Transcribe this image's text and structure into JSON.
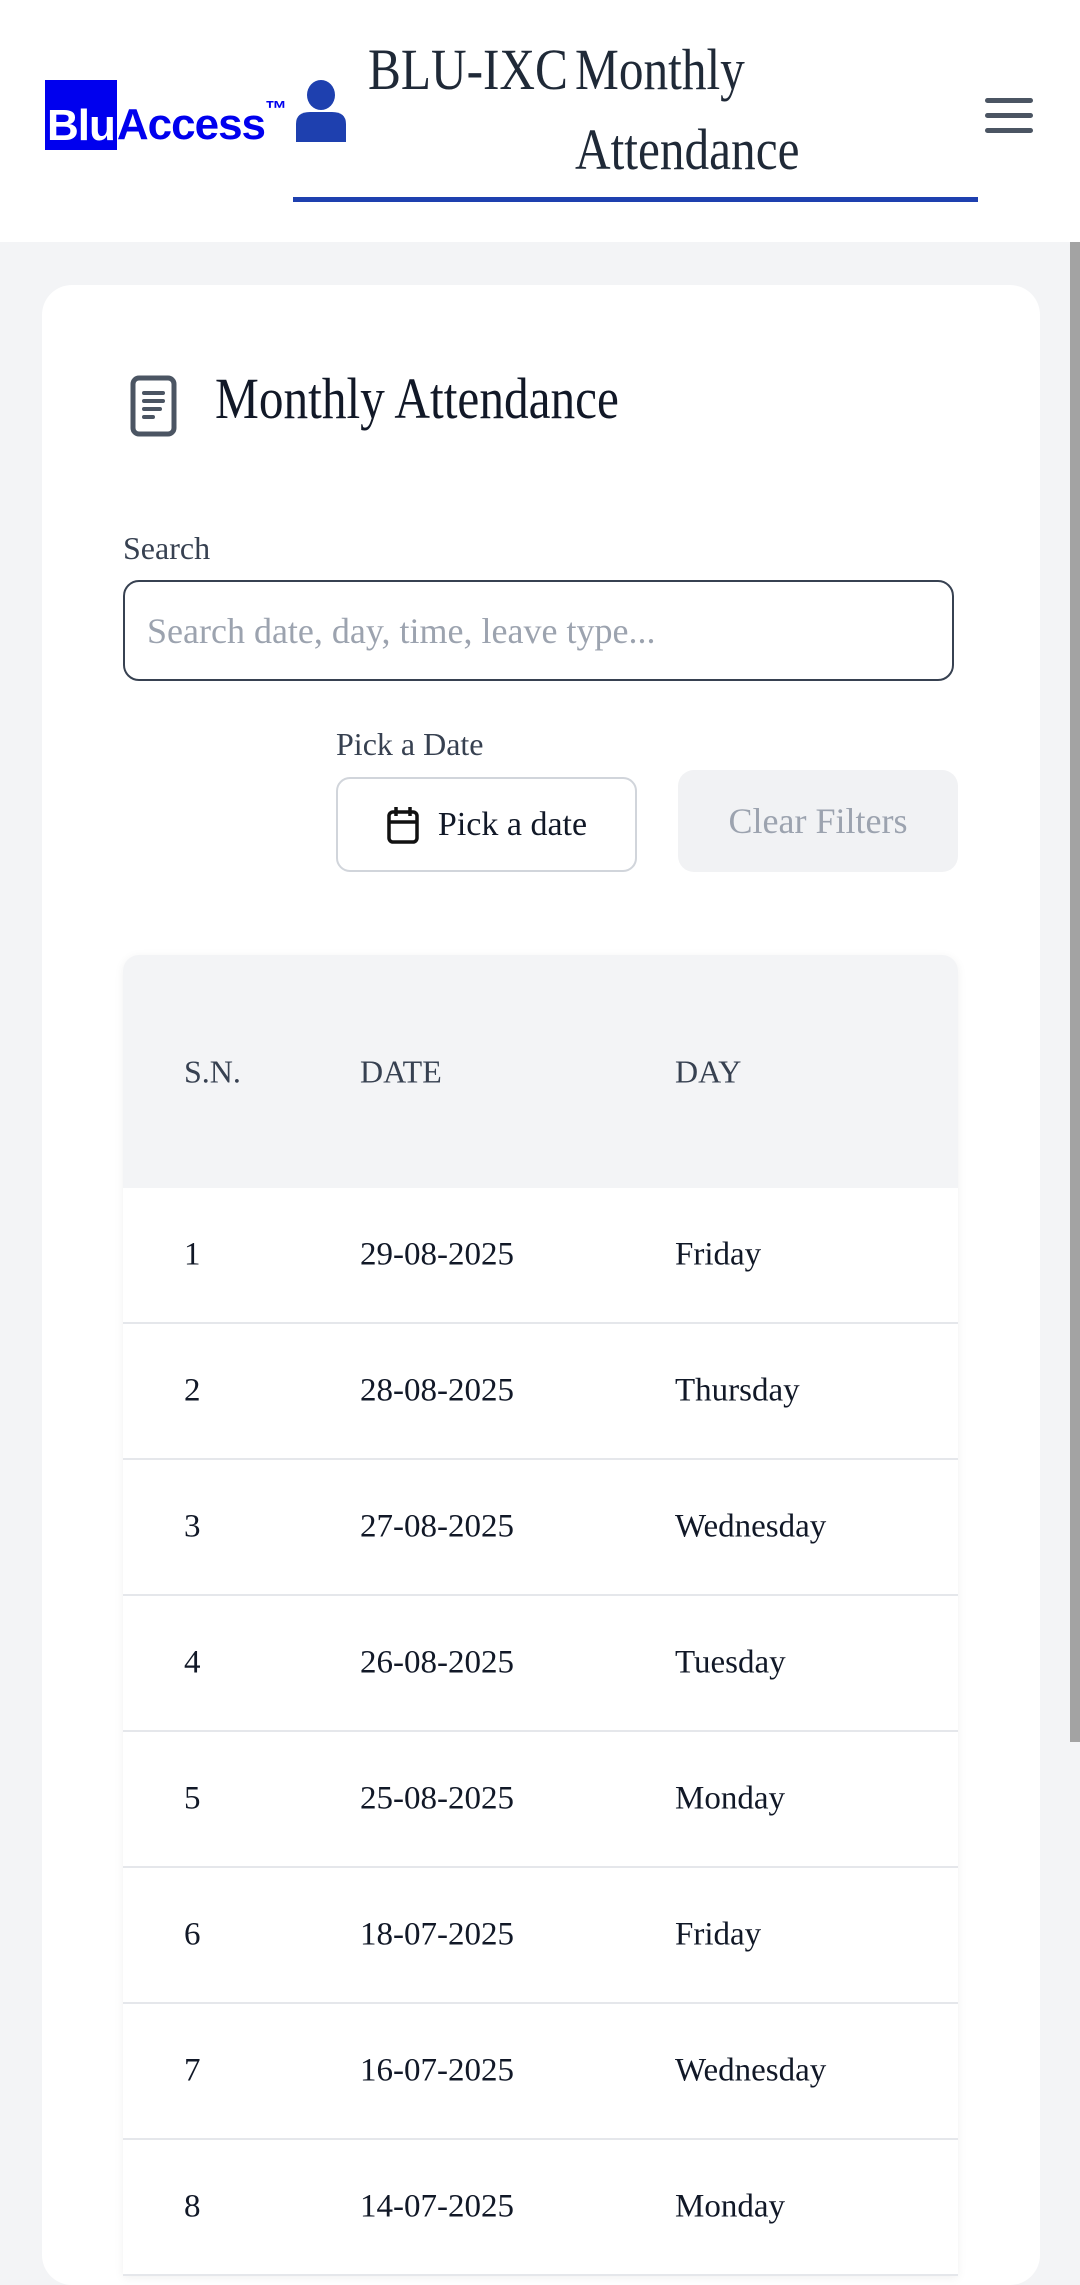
{
  "header": {
    "logo_text": "BluAccess™",
    "user_name": "BLU-IXC",
    "page_title": "Monthly Attendance",
    "accent_color": "#1e40af"
  },
  "card": {
    "title": "Monthly Attendance"
  },
  "filters": {
    "search_label": "Search",
    "search_placeholder": "Search date, day, time, leave type...",
    "search_value": "",
    "date_label": "Pick a Date",
    "date_button": "Pick a date",
    "clear_button": "Clear Filters"
  },
  "table": {
    "columns": [
      "S.N.",
      "DATE",
      "DAY"
    ],
    "rows": [
      [
        "1",
        "29-08-2025",
        "Friday"
      ],
      [
        "2",
        "28-08-2025",
        "Thursday"
      ],
      [
        "3",
        "27-08-2025",
        "Wednesday"
      ],
      [
        "4",
        "26-08-2025",
        "Tuesday"
      ],
      [
        "5",
        "25-08-2025",
        "Monday"
      ],
      [
        "6",
        "18-07-2025",
        "Friday"
      ],
      [
        "7",
        "16-07-2025",
        "Wednesday"
      ],
      [
        "8",
        "14-07-2025",
        "Monday"
      ]
    ]
  }
}
